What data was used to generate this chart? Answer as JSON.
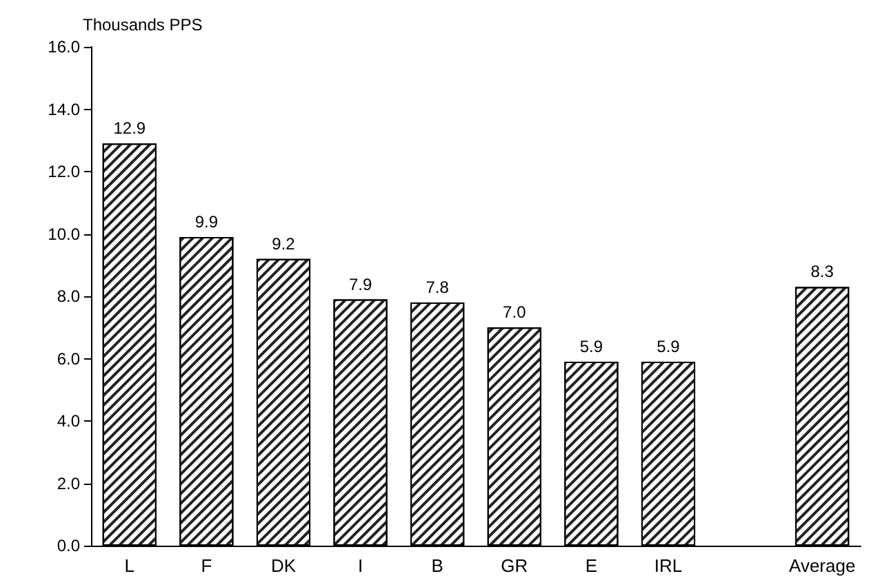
{
  "chart_data": {
    "type": "bar",
    "ylabel": "Thousands PPS",
    "categories": [
      "L",
      "F",
      "DK",
      "I",
      "B",
      "GR",
      "E",
      "IRL",
      null,
      "Average"
    ],
    "values": [
      12.9,
      9.9,
      9.2,
      7.9,
      7.8,
      7.0,
      5.9,
      5.9,
      null,
      8.3
    ],
    "value_labels": [
      "12.9",
      "9.9",
      "9.2",
      "7.9",
      "7.8",
      "7.0",
      "5.9",
      "5.9",
      null,
      "8.3"
    ],
    "color": "#ffffff",
    "ylim": [
      0,
      16
    ],
    "yticks": [
      {
        "value": 0,
        "label": "0.0"
      },
      {
        "value": 2,
        "label": "2.0"
      },
      {
        "value": 4,
        "label": "4.0"
      },
      {
        "value": 6,
        "label": "6.0"
      },
      {
        "value": 8,
        "label": "8.0"
      },
      {
        "value": 10,
        "label": "10.0"
      },
      {
        "value": 12,
        "label": "12.0"
      },
      {
        "value": 14,
        "label": "14.0"
      },
      {
        "value": 16,
        "label": "16.0"
      }
    ]
  }
}
